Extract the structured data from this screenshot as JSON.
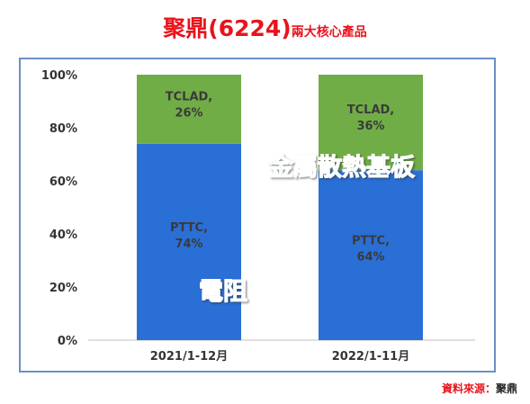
{
  "title": {
    "main": "聚鼎(6224)",
    "sub": "兩大核心產品"
  },
  "source": {
    "label": "資料來源：",
    "value": "聚鼎"
  },
  "annotations": {
    "top": "金屬散熱基板",
    "bottom": "電阻"
  },
  "colors": {
    "bottom_series": "#2a6fd6",
    "top_series": "#70ad47",
    "annotation_top": "#1ecfa0",
    "annotation_bottom": "#3d8ef0"
  },
  "chart_data": {
    "type": "bar",
    "stacked": true,
    "categories": [
      "2021/1-12月",
      "2022/1-11月"
    ],
    "series": [
      {
        "name": "PTTC",
        "values": [
          74,
          64
        ],
        "labels": [
          "PTTC,",
          "PTTC,"
        ],
        "value_labels": [
          "74%",
          "64%"
        ]
      },
      {
        "name": "TCLAD",
        "values": [
          26,
          36
        ],
        "labels": [
          "TCLAD,",
          "TCLAD,"
        ],
        "value_labels": [
          "26%",
          "36%"
        ]
      }
    ],
    "ylim": [
      0,
      100
    ],
    "yticks": [
      "0%",
      "20%",
      "40%",
      "60%",
      "80%",
      "100%"
    ],
    "grid": false,
    "legend": "none"
  }
}
